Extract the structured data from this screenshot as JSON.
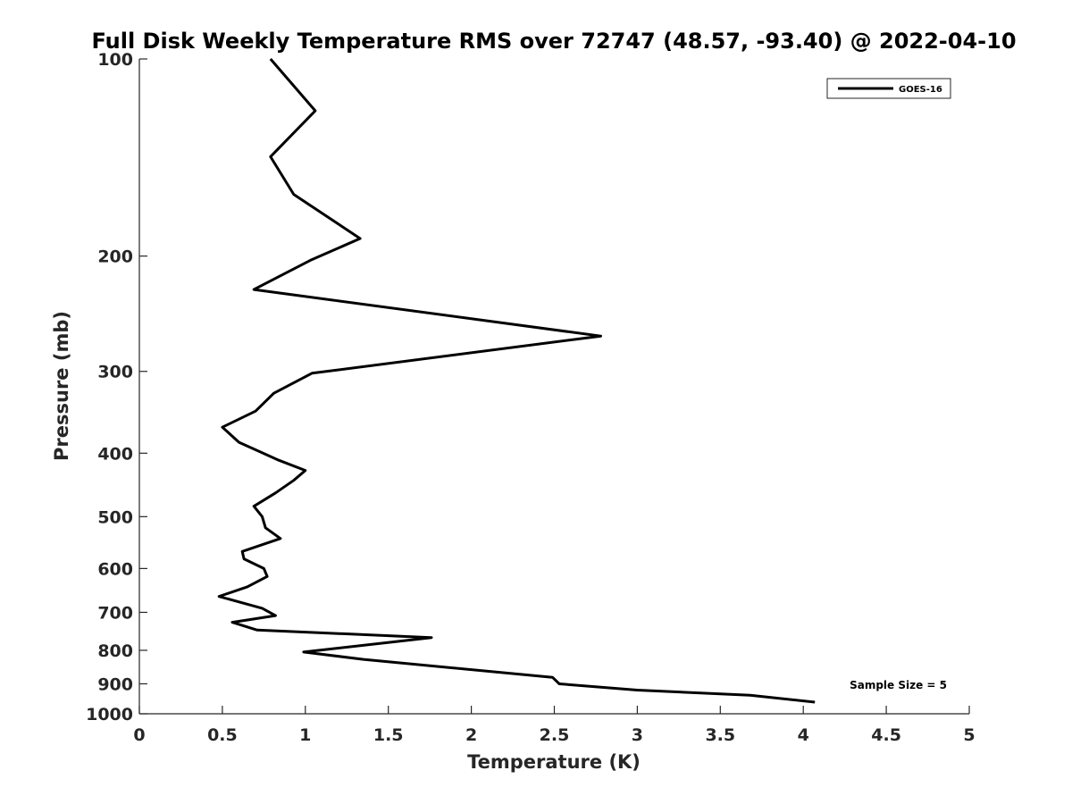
{
  "chart_data": {
    "type": "line",
    "title": "Full Disk Weekly Temperature RMS over 72747 (48.57, -93.40) @ 2022-04-10",
    "xlabel": "Temperature (K)",
    "ylabel": "Pressure (mb)",
    "xlim": [
      0,
      5
    ],
    "ylim": [
      100,
      1000
    ],
    "y_scale": "log",
    "y_reversed": true,
    "x_ticks": [
      {
        "value": 0,
        "label": "0"
      },
      {
        "value": 0.5,
        "label": "0.5"
      },
      {
        "value": 1,
        "label": "1"
      },
      {
        "value": 1.5,
        "label": "1.5"
      },
      {
        "value": 2,
        "label": "2"
      },
      {
        "value": 2.5,
        "label": "2.5"
      },
      {
        "value": 3,
        "label": "3"
      },
      {
        "value": 3.5,
        "label": "3.5"
      },
      {
        "value": 4,
        "label": "4"
      },
      {
        "value": 4.5,
        "label": "4.5"
      },
      {
        "value": 5,
        "label": "5"
      }
    ],
    "y_ticks": [
      {
        "value": 100,
        "label": "100"
      },
      {
        "value": 200,
        "label": "200"
      },
      {
        "value": 300,
        "label": "300"
      },
      {
        "value": 400,
        "label": "400"
      },
      {
        "value": 500,
        "label": "500"
      },
      {
        "value": 600,
        "label": "600"
      },
      {
        "value": 700,
        "label": "700"
      },
      {
        "value": 800,
        "label": "800"
      },
      {
        "value": 900,
        "label": "900"
      },
      {
        "value": 1000,
        "label": "1000"
      }
    ],
    "grid": false,
    "legend_position": "top-right",
    "series": [
      {
        "name": "GOES-16",
        "color": "#000000",
        "points": [
          {
            "x": 0.79,
            "y": 100
          },
          {
            "x": 1.06,
            "y": 120
          },
          {
            "x": 0.79,
            "y": 141
          },
          {
            "x": 0.93,
            "y": 161
          },
          {
            "x": 1.33,
            "y": 188
          },
          {
            "x": 1.03,
            "y": 203
          },
          {
            "x": 0.69,
            "y": 225
          },
          {
            "x": 2.78,
            "y": 265
          },
          {
            "x": 1.04,
            "y": 302
          },
          {
            "x": 0.81,
            "y": 324
          },
          {
            "x": 0.7,
            "y": 345
          },
          {
            "x": 0.5,
            "y": 365
          },
          {
            "x": 0.6,
            "y": 385
          },
          {
            "x": 0.84,
            "y": 410
          },
          {
            "x": 1.0,
            "y": 425
          },
          {
            "x": 0.93,
            "y": 440
          },
          {
            "x": 0.82,
            "y": 460
          },
          {
            "x": 0.69,
            "y": 482
          },
          {
            "x": 0.74,
            "y": 500
          },
          {
            "x": 0.76,
            "y": 520
          },
          {
            "x": 0.85,
            "y": 540
          },
          {
            "x": 0.62,
            "y": 565
          },
          {
            "x": 0.63,
            "y": 580
          },
          {
            "x": 0.75,
            "y": 600
          },
          {
            "x": 0.77,
            "y": 617
          },
          {
            "x": 0.65,
            "y": 640
          },
          {
            "x": 0.48,
            "y": 662
          },
          {
            "x": 0.74,
            "y": 690
          },
          {
            "x": 0.82,
            "y": 708
          },
          {
            "x": 0.56,
            "y": 725
          },
          {
            "x": 0.71,
            "y": 745
          },
          {
            "x": 1.76,
            "y": 765
          },
          {
            "x": 0.99,
            "y": 805
          },
          {
            "x": 1.35,
            "y": 826
          },
          {
            "x": 2.49,
            "y": 880
          },
          {
            "x": 2.53,
            "y": 900
          },
          {
            "x": 3.0,
            "y": 920
          },
          {
            "x": 3.68,
            "y": 937
          },
          {
            "x": 4.07,
            "y": 960
          }
        ]
      }
    ],
    "annotations": [
      {
        "text": "Sample Size = 5",
        "position": "bottom-right"
      }
    ]
  }
}
